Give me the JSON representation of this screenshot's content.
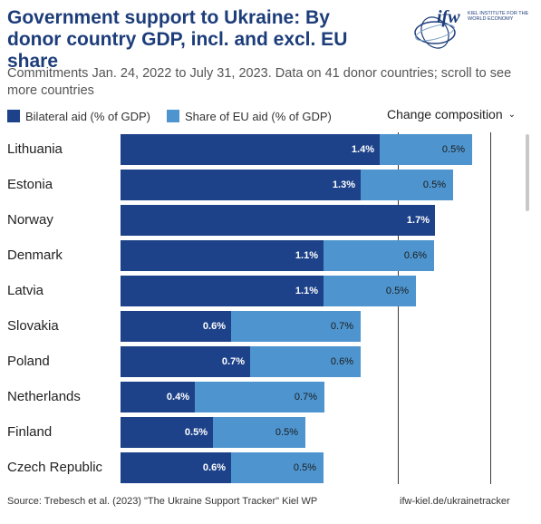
{
  "header": {
    "title": "Government support to Ukraine: By donor country GDP, incl. and excl. EU share",
    "subtitle": "Commitments Jan. 24, 2022 to July 31, 2023. Data on 41 donor countries; scroll to see more countries",
    "logo": {
      "mark": "ifw",
      "institute": "KIEL INSTITUTE FOR THE WORLD ECONOMY"
    }
  },
  "controls": {
    "change_composition": "Change composition"
  },
  "footer": {
    "source": "Source: Trebesch et al. (2023) \"The Ukraine Support Tracker\" Kiel WP",
    "link": "ifw-kiel.de/ukrainetracker"
  },
  "colors": {
    "bilateral": "#1d4289",
    "eu": "#4e95cf"
  },
  "chart_data": {
    "type": "bar",
    "orientation": "horizontal",
    "stacked": true,
    "categories": [
      "Lithuania",
      "Estonia",
      "Norway",
      "Denmark",
      "Latvia",
      "Slovakia",
      "Poland",
      "Netherlands",
      "Finland",
      "Czech Republic"
    ],
    "series": [
      {
        "name": "Bilateral aid (% of GDP)",
        "values": [
          1.4,
          1.3,
          1.7,
          1.1,
          1.1,
          0.6,
          0.7,
          0.4,
          0.5,
          0.6
        ],
        "labels": [
          "1.4%",
          "1.3%",
          "1.7%",
          "1.1%",
          "1.1%",
          "0.6%",
          "0.7%",
          "0.4%",
          "0.5%",
          "0.6%"
        ]
      },
      {
        "name": "Share of EU aid (% of GDP)",
        "values": [
          0.5,
          0.5,
          0,
          0.6,
          0.5,
          0.7,
          0.6,
          0.7,
          0.5,
          0.5
        ],
        "labels": [
          "0.5%",
          "0.5%",
          "",
          "0.6%",
          "0.5%",
          "0.7%",
          "0.6%",
          "0.7%",
          "0.5%",
          "0.5%"
        ]
      }
    ],
    "xlim": [
      0,
      2.5
    ],
    "grid": true,
    "legend": "top-left"
  }
}
